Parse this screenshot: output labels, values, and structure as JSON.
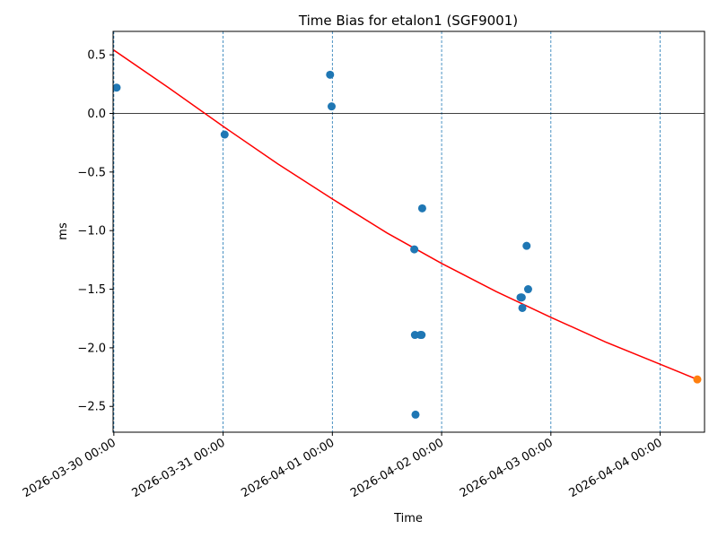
{
  "chart_data": {
    "type": "scatter",
    "title": "Time Bias for etalon1 (SGF9001)",
    "xlabel": "Time",
    "ylabel": "ms",
    "x_axis": "date",
    "xlim": [
      "2026-03-29 23:50",
      "2026-04-04 09:45"
    ],
    "ylim": [
      -2.72,
      0.7
    ],
    "grid": "vertical dashed lines at day boundaries",
    "x_ticks": [
      "2026-03-30 00:00",
      "2026-03-31 00:00",
      "2026-04-01 00:00",
      "2026-04-02 00:00",
      "2026-04-03 00:00",
      "2026-04-04 00:00"
    ],
    "y_ticks": [
      0.5,
      0.0,
      -0.5,
      -1.0,
      -1.5,
      -2.0,
      -2.5
    ],
    "y_tick_labels": [
      "0.5",
      "0.0",
      "−0.5",
      "−1.0",
      "−1.5",
      "−2.0",
      "−2.5"
    ],
    "zero_line": 0.0,
    "colors": {
      "points": "#1f77b4",
      "fit": "#ff0000",
      "highlight": "#ff7f0e",
      "grid": "#1f77b4",
      "axis": "#000000"
    },
    "series": [
      {
        "points": [
          {
            "x": "2026-03-30 00:37",
            "y": 0.22
          },
          {
            "x": "2026-03-31 00:20",
            "y": -0.18
          },
          {
            "x": "2026-03-31 23:30",
            "y": 0.33
          },
          {
            "x": "2026-03-31 23:50",
            "y": 0.06
          },
          {
            "x": "2026-04-01 18:00",
            "y": -1.16
          },
          {
            "x": "2026-04-01 18:08",
            "y": -1.89
          },
          {
            "x": "2026-04-01 18:16",
            "y": -2.57
          },
          {
            "x": "2026-04-01 19:20",
            "y": -1.89
          },
          {
            "x": "2026-04-01 19:36",
            "y": -1.89
          },
          {
            "x": "2026-04-01 19:44",
            "y": -0.81
          },
          {
            "x": "2026-04-02 17:20",
            "y": -1.57
          },
          {
            "x": "2026-04-02 17:30",
            "y": -1.57
          },
          {
            "x": "2026-04-02 17:36",
            "y": -1.57
          },
          {
            "x": "2026-04-02 17:44",
            "y": -1.66
          },
          {
            "x": "2026-04-02 18:40",
            "y": -1.13
          },
          {
            "x": "2026-04-02 19:00",
            "y": -1.5
          }
        ]
      },
      {
        "points": [
          {
            "x": "2026-04-04 08:10",
            "y": -2.27
          }
        ]
      },
      {
        "type": "line",
        "points": [
          {
            "x": "2026-03-30 00:00",
            "y": 0.54
          },
          {
            "x": "2026-03-30 12:00",
            "y": 0.22
          },
          {
            "x": "2026-03-31 00:00",
            "y": -0.11
          },
          {
            "x": "2026-03-31 12:00",
            "y": -0.43
          },
          {
            "x": "2026-04-01 00:00",
            "y": -0.73
          },
          {
            "x": "2026-04-01 12:00",
            "y": -1.02
          },
          {
            "x": "2026-04-02 00:00",
            "y": -1.28
          },
          {
            "x": "2026-04-02 12:00",
            "y": -1.52
          },
          {
            "x": "2026-04-03 00:00",
            "y": -1.74
          },
          {
            "x": "2026-04-03 12:00",
            "y": -1.95
          },
          {
            "x": "2026-04-04 00:00",
            "y": -2.14
          },
          {
            "x": "2026-04-04 08:10",
            "y": -2.27
          }
        ]
      }
    ]
  }
}
